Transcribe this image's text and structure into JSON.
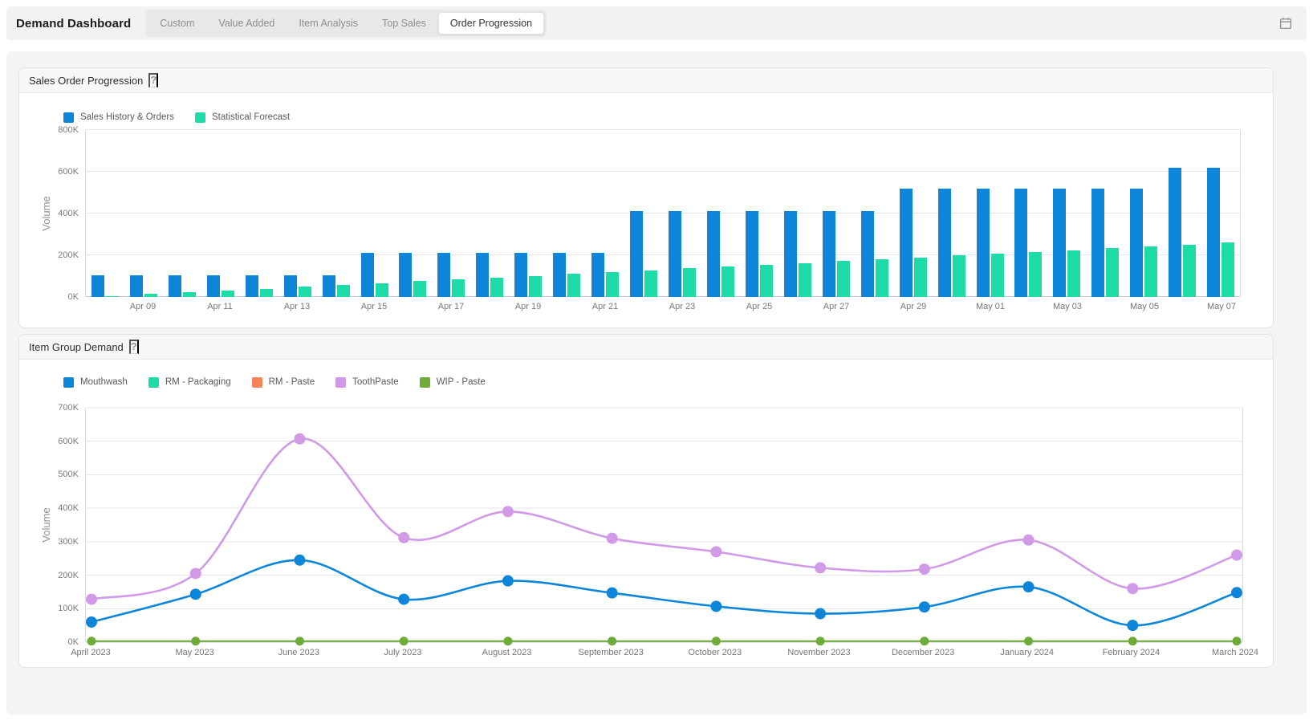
{
  "header": {
    "title": "Demand Dashboard",
    "tabs": [
      "Custom",
      "Value Added",
      "Item Analysis",
      "Top Sales",
      "Order Progression"
    ],
    "active_tab": "Order Progression",
    "calendar_icon": "calendar-icon"
  },
  "panel1": {
    "title": "Sales Order Progression",
    "help": "?"
  },
  "panel2": {
    "title": "Item Group Demand",
    "help": "?"
  },
  "chart_data": [
    {
      "type": "bar",
      "title": "Sales Order Progression",
      "xlabel": "",
      "ylabel": "Volume",
      "ylim": [
        0,
        800000
      ],
      "ytick_labels": [
        "0K",
        "200K",
        "400K",
        "600K",
        "800K"
      ],
      "grid": true,
      "legend_position": "top-left",
      "categories": [
        "Apr 08",
        "Apr 09",
        "Apr 10",
        "Apr 11",
        "Apr 12",
        "Apr 13",
        "Apr 14",
        "Apr 15",
        "Apr 16",
        "Apr 17",
        "Apr 18",
        "Apr 19",
        "Apr 20",
        "Apr 21",
        "Apr 22",
        "Apr 23",
        "Apr 24",
        "Apr 25",
        "Apr 26",
        "Apr 27",
        "Apr 28",
        "Apr 29",
        "Apr 30",
        "May 01",
        "May 02",
        "May 03",
        "May 04",
        "May 05",
        "May 06",
        "May 07"
      ],
      "xtick_labels_shown": [
        "Apr 09",
        "Apr 11",
        "Apr 13",
        "Apr 15",
        "Apr 17",
        "Apr 19",
        "Apr 21",
        "Apr 23",
        "Apr 25",
        "Apr 27",
        "Apr 29",
        "May 01",
        "May 03",
        "May 05",
        "May 07"
      ],
      "series": [
        {
          "name": "Sales History & Orders",
          "color": "#0d86d9",
          "values": [
            105000,
            105000,
            105000,
            105000,
            105000,
            105000,
            105000,
            210000,
            210000,
            210000,
            210000,
            210000,
            210000,
            210000,
            410000,
            410000,
            410000,
            410000,
            410000,
            410000,
            410000,
            520000,
            520000,
            520000,
            520000,
            520000,
            520000,
            520000,
            620000,
            620000
          ]
        },
        {
          "name": "Statistical Forecast",
          "color": "#1edca8",
          "values": [
            5000,
            13800,
            22600,
            31400,
            40200,
            49000,
            57800,
            66600,
            75400,
            84200,
            93000,
            101800,
            110600,
            119400,
            128200,
            137000,
            145800,
            154600,
            163400,
            172200,
            181000,
            189800,
            198600,
            207400,
            216200,
            225000,
            233800,
            242600,
            251400,
            260000
          ]
        }
      ]
    },
    {
      "type": "line",
      "title": "Item Group Demand",
      "xlabel": "",
      "ylabel": "Volume",
      "ylim": [
        0,
        700000
      ],
      "ytick_labels": [
        "0K",
        "100K",
        "200K",
        "300K",
        "400K",
        "500K",
        "600K",
        "700K"
      ],
      "grid": true,
      "legend_position": "top-left",
      "x": [
        "April 2023",
        "May 2023",
        "June 2023",
        "July 2023",
        "August 2023",
        "September 2023",
        "October 2023",
        "November 2023",
        "December 2023",
        "January 2024",
        "February 2024",
        "March 2024"
      ],
      "series": [
        {
          "name": "Mouthwash",
          "color": "#0d86d9",
          "values": [
            60000,
            143000,
            245000,
            128000,
            183000,
            147000,
            107000,
            85000,
            105000,
            165000,
            50000,
            148000
          ]
        },
        {
          "name": "RM - Packaging",
          "color": "#1edca8",
          "values": [
            0,
            0,
            0,
            0,
            0,
            0,
            0,
            0,
            0,
            0,
            0,
            0
          ]
        },
        {
          "name": "RM - Paste",
          "color": "#f5845c",
          "values": [
            0,
            0,
            0,
            0,
            0,
            0,
            0,
            0,
            0,
            0,
            0,
            0
          ]
        },
        {
          "name": "ToothPaste",
          "color": "#d09ae6",
          "values": [
            128000,
            205000,
            607000,
            312000,
            390000,
            310000,
            270000,
            222000,
            218000,
            305000,
            160000,
            260000
          ]
        },
        {
          "name": "WIP - Paste",
          "color": "#6fab38",
          "values": [
            3000,
            3000,
            3000,
            3000,
            3000,
            3000,
            3000,
            3000,
            3000,
            3000,
            3000,
            3000
          ]
        }
      ]
    }
  ]
}
